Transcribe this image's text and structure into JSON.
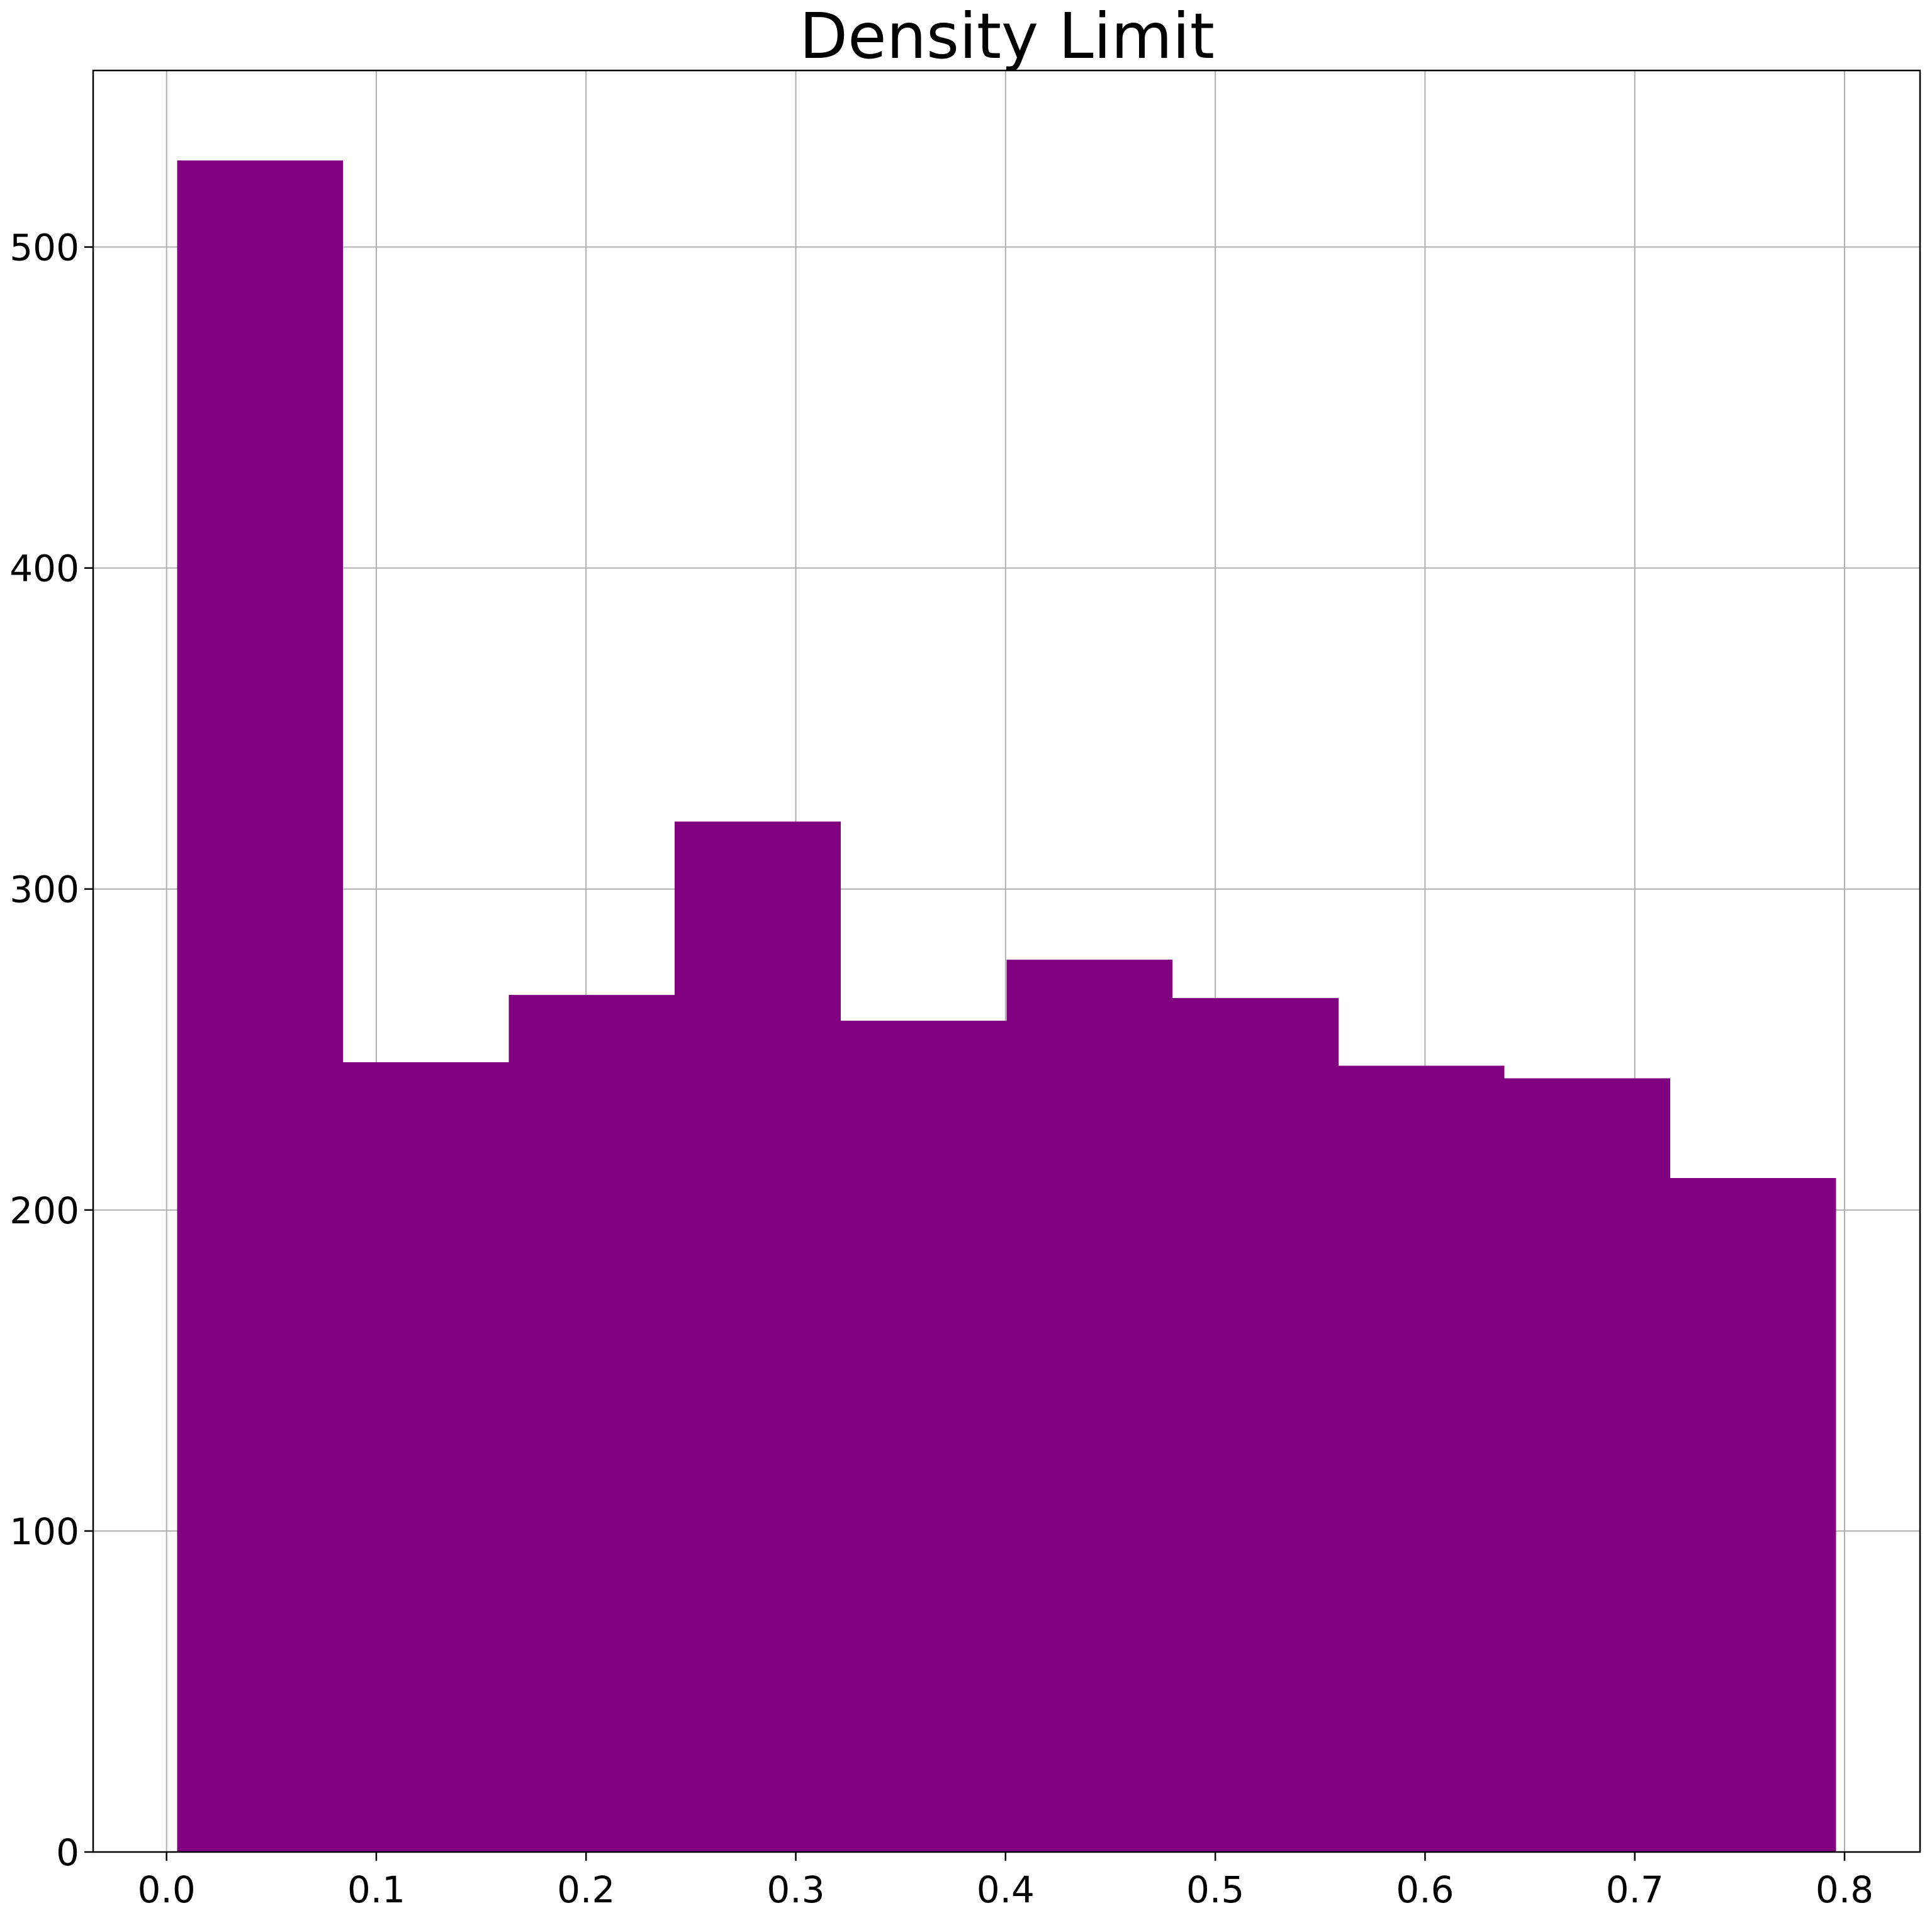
{
  "chart_data": {
    "type": "bar",
    "title": "Density Limit",
    "xlabel": "",
    "ylabel": "",
    "bin_edges": [
      0.005,
      0.0841,
      0.1632,
      0.2423,
      0.3214,
      0.4005,
      0.4796,
      0.5587,
      0.6378,
      0.7169,
      0.796
    ],
    "values": [
      527,
      246,
      267,
      321,
      259,
      278,
      266,
      245,
      241,
      210
    ],
    "xlim": [
      -0.035,
      0.836
    ],
    "ylim": [
      0,
      555
    ],
    "x_ticks": [
      0.0,
      0.1,
      0.2,
      0.3,
      0.4,
      0.5,
      0.6,
      0.7,
      0.8
    ],
    "x_tick_labels": [
      "0.0",
      "0.1",
      "0.2",
      "0.3",
      "0.4",
      "0.5",
      "0.6",
      "0.7",
      "0.8"
    ],
    "y_ticks": [
      0,
      100,
      200,
      300,
      400,
      500
    ],
    "y_tick_labels": [
      "0",
      "100",
      "200",
      "300",
      "400",
      "500"
    ],
    "grid": true,
    "bar_color": "#800080"
  }
}
